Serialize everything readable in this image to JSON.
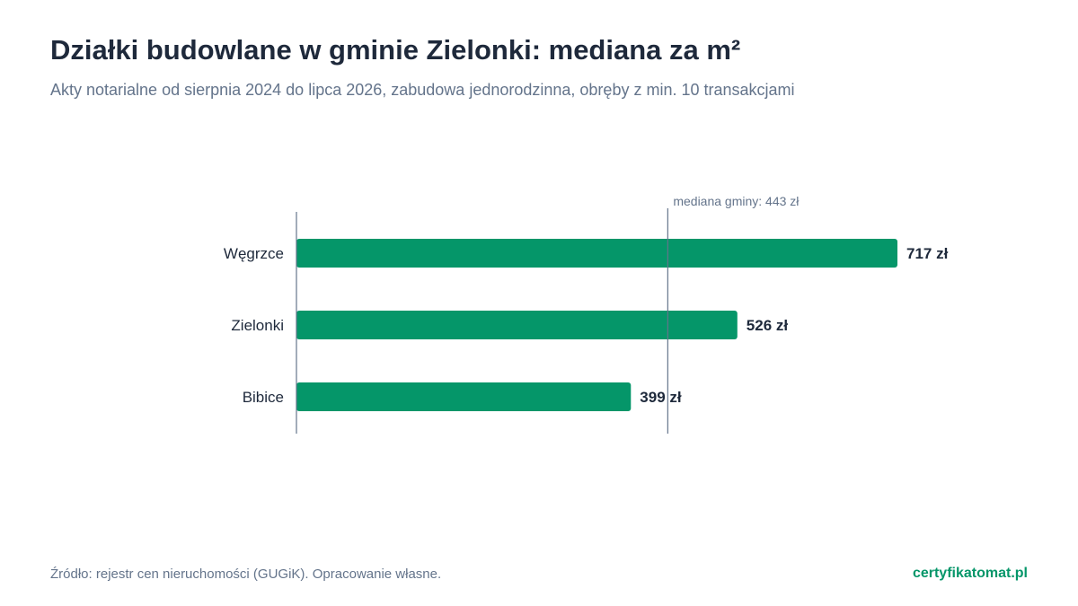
{
  "header": {
    "title": "Działki budowlane w gminie Zielonki: mediana za m²",
    "subtitle": "Akty notarialne od sierpnia 2024 do lipca 2026, zabudowa jednorodzinna, obręby z min. 10 transakcjami"
  },
  "chart_data": {
    "type": "bar",
    "orientation": "horizontal",
    "categories": [
      "Węgrzce",
      "Zielonki",
      "Bibice"
    ],
    "values": [
      717,
      526,
      399
    ],
    "value_labels": [
      "717 zł",
      "526 zł",
      "399 zł"
    ],
    "unit": "zł",
    "reference_line": {
      "value": 443,
      "label": "mediana gminy: 443 zł"
    },
    "xlim": [
      0,
      810
    ],
    "grid": false,
    "bar_color": "#059669"
  },
  "footer": {
    "source": "Źródło: rejestr cen nieruchomości (GUGiK). Opracowanie własne.",
    "brand": "certyfikatomat.pl"
  }
}
